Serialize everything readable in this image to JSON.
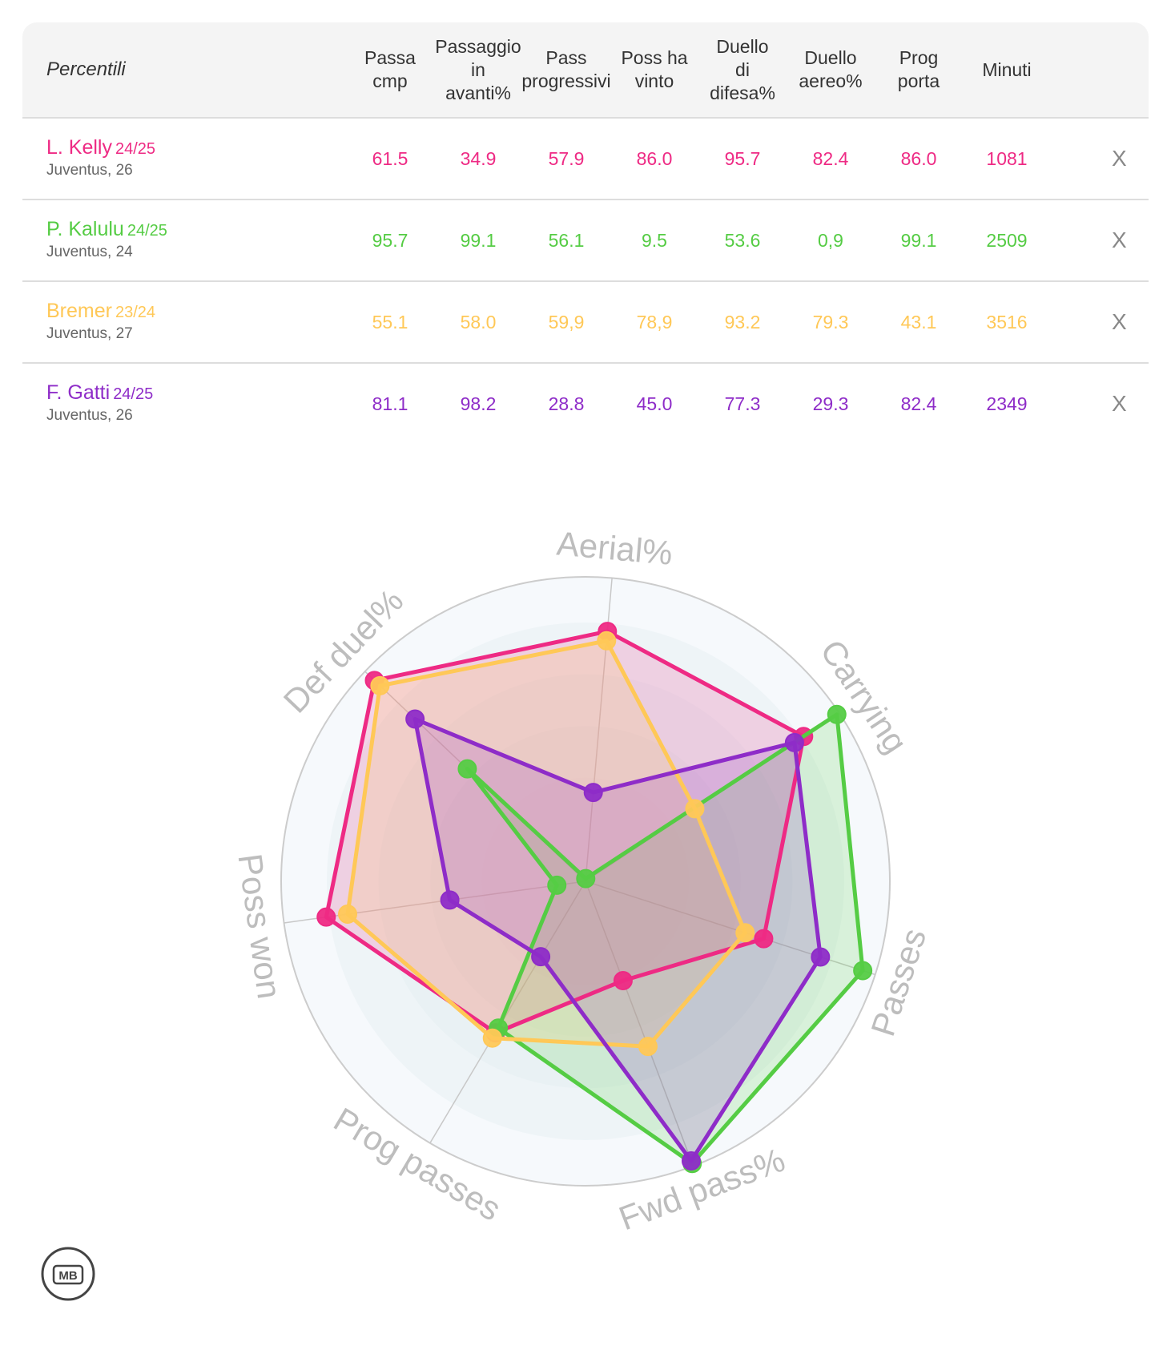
{
  "table": {
    "title": "Percentili",
    "columns": [
      [
        "Passa",
        "cmp"
      ],
      [
        "Passaggio",
        "in",
        "avanti%"
      ],
      [
        "Pass",
        "progressivi"
      ],
      [
        "Poss ha",
        "vinto"
      ],
      [
        "Duello",
        "di",
        "difesa%"
      ],
      [
        "Duello",
        "aereo%"
      ],
      [
        "Prog",
        "porta"
      ],
      [
        "Minuti"
      ]
    ],
    "remove_label": "X",
    "rows": [
      {
        "name": "L. Kelly",
        "season": "24/25",
        "team": "Juventus, 26",
        "color": "#ee2a84",
        "values": [
          "61.5",
          "34.9",
          "57.9",
          "86.0",
          "95.7",
          "82.4",
          "86.0",
          "1081"
        ]
      },
      {
        "name": "P. Kalulu",
        "season": "24/25",
        "team": "Juventus, 24",
        "color": "#55cc44",
        "values": [
          "95.7",
          "99.1",
          "56.1",
          "9.5",
          "53.6",
          "0,9",
          "99.1",
          "2509"
        ]
      },
      {
        "name": "Bremer",
        "season": "23/24",
        "team": "Juventus, 27",
        "color": "#ffc857",
        "values": [
          "55.1",
          "58.0",
          "59,9",
          "78,9",
          "93.2",
          "79.3",
          "43.1",
          "3516"
        ]
      },
      {
        "name": "F. Gatti",
        "season": "24/25",
        "team": "Juventus, 26",
        "color": "#8e2cc8",
        "values": [
          "81.1",
          "98.2",
          "28.8",
          "45.0",
          "77.3",
          "29.3",
          "82.4",
          "2349"
        ]
      }
    ]
  },
  "chart_data": {
    "type": "radar",
    "axes": [
      "Aerial%",
      "Carrying",
      "Passes",
      "Fwd pass%",
      "Prog passes",
      "Poss won",
      "Def duel%"
    ],
    "range": [
      0,
      100
    ],
    "series": [
      {
        "name": "L. Kelly",
        "color": "#ee2a84",
        "values": [
          82.4,
          86.0,
          61.5,
          34.9,
          57.9,
          86.0,
          95.7
        ]
      },
      {
        "name": "P. Kalulu",
        "color": "#55cc44",
        "values": [
          0.9,
          99.1,
          95.7,
          99.1,
          56.1,
          9.5,
          53.6
        ]
      },
      {
        "name": "Bremer",
        "color": "#ffc857",
        "values": [
          79.3,
          43.1,
          55.1,
          58.0,
          59.9,
          78.9,
          93.2
        ]
      },
      {
        "name": "F. Gatti",
        "color": "#8e2cc8",
        "values": [
          29.3,
          82.4,
          81.1,
          98.2,
          28.8,
          45.0,
          77.3
        ]
      }
    ],
    "grid": true,
    "legend": "none"
  },
  "logo": {
    "text": "MB"
  }
}
